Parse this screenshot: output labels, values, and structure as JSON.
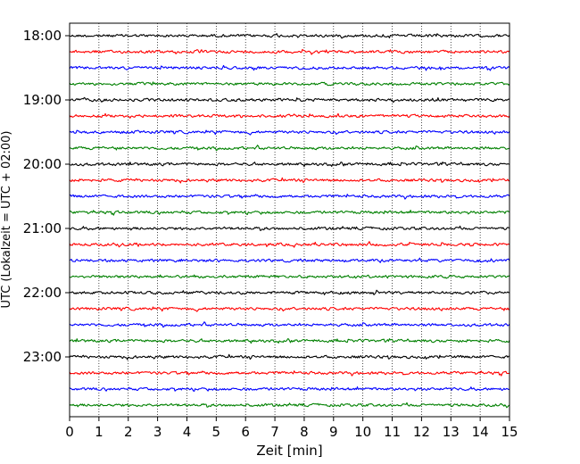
{
  "chart_data": {
    "type": "line",
    "title": "",
    "xlabel": "Zeit  [min]",
    "ylabel": "UTC (Lokalzeit = UTC + 02:00)",
    "xlim": [
      0,
      15
    ],
    "x_ticks": [
      "0",
      "1",
      "2",
      "3",
      "4",
      "5",
      "6",
      "7",
      "8",
      "9",
      "10",
      "11",
      "12",
      "13",
      "14",
      "15"
    ],
    "y_ticks": [
      "18:00",
      "19:00",
      "20:00",
      "21:00",
      "22:00",
      "23:00"
    ],
    "grid": {
      "x": true,
      "y": false,
      "style": "dotted"
    },
    "traces_per_hour": 4,
    "trace_minutes": 15,
    "color_cycle": [
      "#000000",
      "#ff0000",
      "#0000ff",
      "#008000"
    ],
    "series": [
      {
        "start": "18:00"
      },
      {
        "start": "18:15"
      },
      {
        "start": "18:30"
      },
      {
        "start": "18:45"
      },
      {
        "start": "19:00"
      },
      {
        "start": "19:15"
      },
      {
        "start": "19:30"
      },
      {
        "start": "19:45"
      },
      {
        "start": "20:00"
      },
      {
        "start": "20:15"
      },
      {
        "start": "20:30"
      },
      {
        "start": "20:45"
      },
      {
        "start": "21:00"
      },
      {
        "start": "21:15"
      },
      {
        "start": "21:30"
      },
      {
        "start": "21:45"
      },
      {
        "start": "22:00"
      },
      {
        "start": "22:15"
      },
      {
        "start": "22:30"
      },
      {
        "start": "22:45"
      },
      {
        "start": "23:00"
      },
      {
        "start": "23:15"
      },
      {
        "start": "23:30"
      },
      {
        "start": "23:45"
      }
    ]
  }
}
